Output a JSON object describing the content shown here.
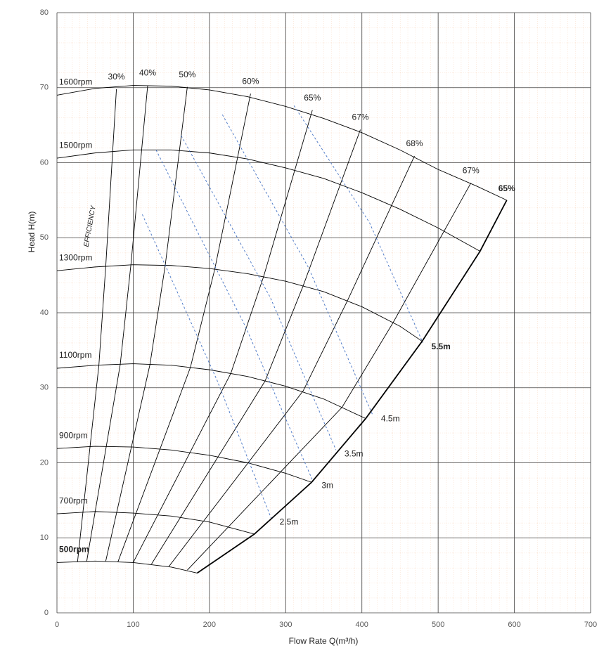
{
  "chart_data": {
    "type": "line",
    "x_label": "Flow Rate Q(m³/h)",
    "y_label": "Head H(m)",
    "annotation": "EFFICIENCY",
    "xlim": [
      0,
      700
    ],
    "ylim": [
      0,
      80
    ],
    "xticks": [
      0,
      100,
      200,
      300,
      400,
      500,
      600,
      700
    ],
    "yticks": [
      0,
      10,
      20,
      30,
      40,
      50,
      60,
      70,
      80
    ],
    "grid": true,
    "series": [
      {
        "name": "1600rpm",
        "color": "#000000",
        "bold": false,
        "x": [
          0,
          50,
          100,
          150,
          200,
          250,
          300,
          350,
          400,
          450,
          500,
          550,
          590
        ],
        "values": [
          69.0,
          69.9,
          70.3,
          70.2,
          69.7,
          68.8,
          67.5,
          65.9,
          64.0,
          61.7,
          59.1,
          56.9,
          55.0
        ]
      },
      {
        "name": "1500rpm",
        "color": "#000000",
        "bold": false,
        "x": [
          0,
          50,
          100,
          150,
          200,
          250,
          300,
          350,
          400,
          450,
          500,
          555
        ],
        "values": [
          60.6,
          61.3,
          61.7,
          61.7,
          61.3,
          60.5,
          59.3,
          57.9,
          56.0,
          53.8,
          51.3,
          48.2
        ]
      },
      {
        "name": "1300rpm",
        "color": "#000000",
        "bold": false,
        "x": [
          0,
          50,
          100,
          150,
          200,
          250,
          300,
          350,
          400,
          450,
          479
        ],
        "values": [
          45.6,
          46.1,
          46.4,
          46.3,
          45.9,
          45.2,
          44.2,
          42.8,
          40.8,
          38.2,
          36.2
        ]
      },
      {
        "name": "1100rpm",
        "color": "#000000",
        "bold": false,
        "x": [
          0,
          50,
          100,
          150,
          200,
          250,
          300,
          350,
          405
        ],
        "values": [
          32.6,
          33.0,
          33.2,
          33.0,
          32.4,
          31.5,
          30.2,
          28.5,
          25.9
        ]
      },
      {
        "name": "900rpm",
        "color": "#000000",
        "bold": false,
        "x": [
          0,
          50,
          100,
          150,
          200,
          250,
          300,
          334
        ],
        "values": [
          21.9,
          22.2,
          22.1,
          21.7,
          21.0,
          20.0,
          18.6,
          17.4
        ]
      },
      {
        "name": "700rpm",
        "color": "#000000",
        "bold": false,
        "x": [
          0,
          50,
          100,
          150,
          200,
          259
        ],
        "values": [
          13.2,
          13.5,
          13.3,
          12.9,
          12.1,
          10.5
        ]
      },
      {
        "name": "500rpm",
        "color": "#000000",
        "bold": true,
        "x": [
          0,
          50,
          100,
          150,
          184
        ],
        "values": [
          6.7,
          6.9,
          6.7,
          6.1,
          5.3
        ]
      }
    ],
    "efficiency_curves": [
      {
        "label": "30%",
        "x": [
          27,
          55,
          64,
          78
        ],
        "values": [
          6.8,
          33.0,
          46.2,
          69.8
        ]
      },
      {
        "label": "40%",
        "x": [
          39,
          83,
          97,
          119
        ],
        "values": [
          6.85,
          33.1,
          46.4,
          70.3
        ]
      },
      {
        "label": "50%",
        "x": [
          64,
          122,
          142,
          171
        ],
        "values": [
          6.9,
          33.1,
          46.3,
          70.1
        ]
      },
      {
        "label": "60%",
        "x": [
          80,
          175,
          207,
          254
        ],
        "values": [
          6.8,
          32.7,
          45.8,
          69.2
        ]
      },
      {
        "label": "65%",
        "x": [
          100,
          228,
          271,
          335
        ],
        "values": [
          6.7,
          31.9,
          44.8,
          67.0
        ]
      },
      {
        "label": "67%",
        "x": [
          124,
          273,
          323,
          398
        ],
        "values": [
          6.5,
          30.9,
          43.6,
          64.4
        ]
      },
      {
        "label": "68%",
        "x": [
          147,
          323,
          381,
          469
        ],
        "values": [
          6.2,
          29.6,
          41.6,
          60.9
        ]
      },
      {
        "label": "67%",
        "x": [
          171,
          374,
          441,
          543
        ],
        "values": [
          5.7,
          27.4,
          38.7,
          57.3
        ]
      }
    ],
    "max_flow_line": {
      "label": "65%",
      "bold": true,
      "x": [
        184,
        259,
        334,
        405,
        479,
        555,
        590
      ],
      "values": [
        5.3,
        10.5,
        17.4,
        25.9,
        36.2,
        48.2,
        55.0
      ]
    },
    "npsh_curves": [
      {
        "label": "2.5m",
        "color": "#4472c4",
        "bold": false,
        "x": [
          112,
          210,
          281
        ],
        "values": [
          53.1,
          31.0,
          12.6
        ]
      },
      {
        "label": "3m",
        "color": "#4472c4",
        "bold": false,
        "x": [
          130,
          248,
          336
        ],
        "values": [
          61.7,
          38.0,
          17.5
        ]
      },
      {
        "label": "3.5m",
        "color": "#4472c4",
        "bold": false,
        "x": [
          163,
          280,
          366
        ],
        "values": [
          63.6,
          42.0,
          21.7
        ]
      },
      {
        "label": "4.5m",
        "color": "#4472c4",
        "bold": false,
        "x": [
          217,
          330,
          414
        ],
        "values": [
          66.4,
          46.0,
          26.4
        ]
      },
      {
        "label": "5.5m",
        "color": "#4472c4",
        "bold": true,
        "x": [
          311,
          410,
          480
        ],
        "values": [
          67.6,
          52.0,
          36.0
        ]
      }
    ]
  }
}
